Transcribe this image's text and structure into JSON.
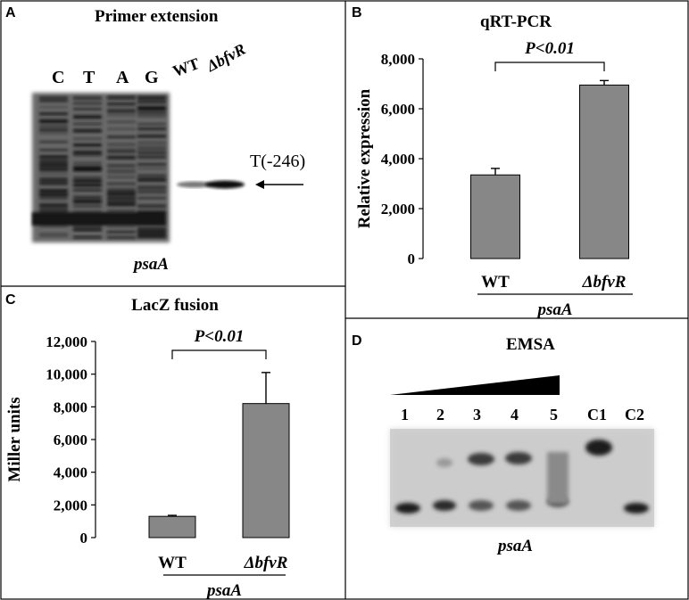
{
  "panel_a": {
    "letter": "A",
    "title": "Primer extension",
    "lanes": [
      "C",
      "T",
      "A",
      "G",
      "WT",
      "ΔbfvR"
    ],
    "band_label": "T(-246)",
    "gene_label": "psaA",
    "arrow_icon": "left-arrow-icon"
  },
  "panel_d": {
    "letter": "D",
    "title": "EMSA",
    "lanes": [
      "1",
      "2",
      "3",
      "4",
      "5",
      "C1",
      "C2"
    ],
    "gene_label": "psaA",
    "gradient_icon": "concentration-wedge-icon"
  },
  "chart_data": [
    {
      "panel": "B",
      "type": "bar",
      "title": "qRT-PCR",
      "categories": [
        "WT",
        "ΔbfvR"
      ],
      "values": [
        3350,
        6950
      ],
      "errors": [
        260,
        180
      ],
      "ylabel": "Relative expression",
      "xlabel": "psaA",
      "ylim": [
        0,
        8000
      ],
      "yticks": [
        "0",
        "2,000",
        "4,000",
        "6,000",
        "8,000"
      ],
      "significance": "P<0.01",
      "bar_color": "#878787"
    },
    {
      "panel": "C",
      "type": "bar",
      "title": "LacZ fusion",
      "categories": [
        "WT",
        "ΔbfvR"
      ],
      "values": [
        1300,
        8200
      ],
      "errors": [
        60,
        1900
      ],
      "ylabel": "Miller units",
      "xlabel": "psaA",
      "ylim": [
        0,
        12000
      ],
      "yticks": [
        "0",
        "2,000",
        "4,000",
        "6,000",
        "8,000",
        "10,000",
        "12,000"
      ],
      "significance": "P<0.01",
      "bar_color": "#878787"
    }
  ]
}
